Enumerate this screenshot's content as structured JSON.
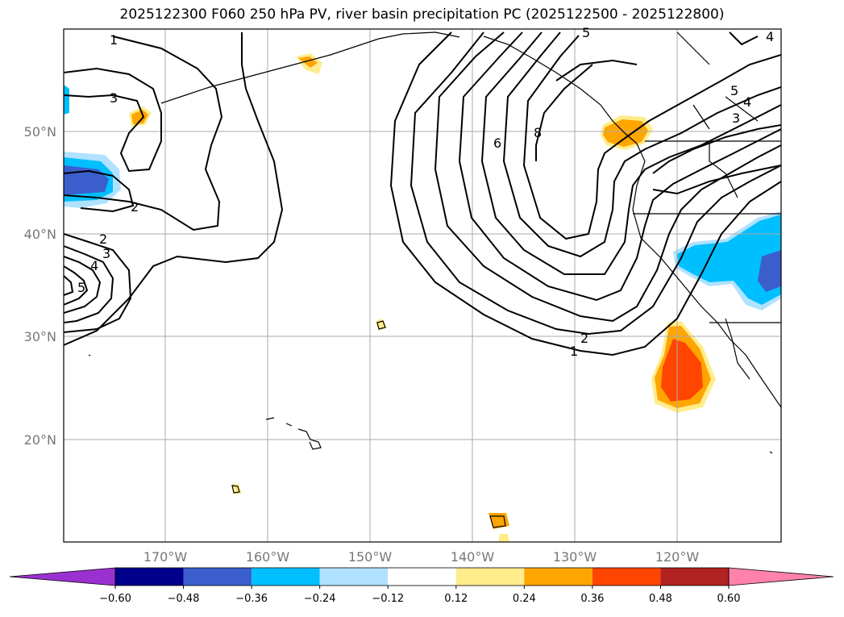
{
  "title": "2025122300 F060 250 hPa PV, river basin precipitation PC (2025122500 - 2025122800)",
  "map": {
    "lon_labels": [
      "170°W",
      "160°W",
      "150°W",
      "140°W",
      "130°W",
      "120°W"
    ],
    "lat_labels": [
      "50°N",
      "40°N",
      "30°N",
      "20°N"
    ],
    "contour_labels": [
      "1",
      "3",
      "2",
      "2",
      "3",
      "4",
      "5",
      "5",
      "6",
      "8",
      "2",
      "1",
      "5",
      "4",
      "3",
      "4"
    ]
  },
  "colorbar": {
    "colors": [
      "#9b30d0",
      "#00008b",
      "#3a5fcd",
      "#00bfff",
      "#b0e2ff",
      "#ffffff",
      "#ffec8b",
      "#ffa500",
      "#ff4500",
      "#b22222",
      "#ff82ab"
    ],
    "labels": [
      "−0.60",
      "−0.48",
      "−0.36",
      "−0.24",
      "−0.12",
      "0.12",
      "0.24",
      "0.36",
      "0.48",
      "0.60"
    ]
  }
}
